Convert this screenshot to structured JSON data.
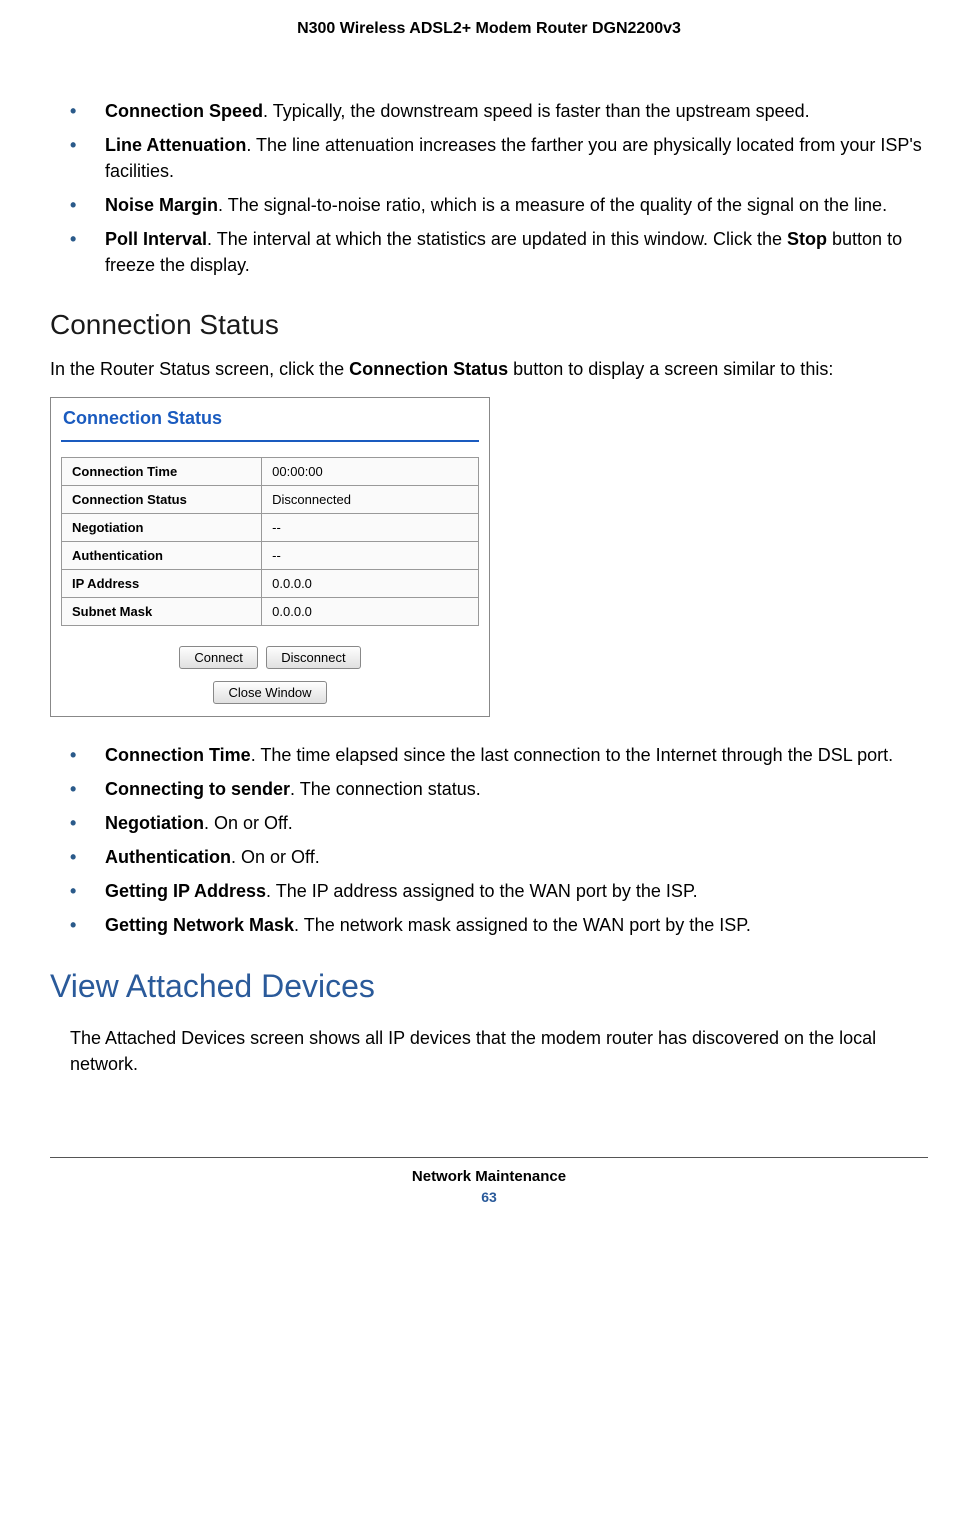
{
  "header": {
    "title": "N300 Wireless ADSL2+ Modem Router DGN2200v3"
  },
  "list1": [
    {
      "term": "Connection Speed",
      "desc": ". Typically, the downstream speed is faster than the upstream speed."
    },
    {
      "term": "Line Attenuation",
      "desc": ". The line attenuation increases the farther you are physically located from your ISP's facilities."
    },
    {
      "term": "Noise Margin",
      "desc": ". The signal-to-noise ratio, which is a measure of the quality of the signal on the line."
    },
    {
      "term": "Poll Interval",
      "desc_pre": ". The interval at which the statistics are updated in this window. Click the ",
      "bold2": "Stop",
      "desc_post": " button to freeze the display."
    }
  ],
  "section1": {
    "heading": "Connection Status",
    "intro_pre": "In the Router Status screen, click the ",
    "intro_bold": "Connection Status",
    "intro_post": " button to display a screen similar to this:"
  },
  "screenshot": {
    "title": "Connection Status",
    "rows": [
      {
        "label": "Connection Time",
        "value": "00:00:00"
      },
      {
        "label": "Connection Status",
        "value": "Disconnected"
      },
      {
        "label": "Negotiation",
        "value": "--"
      },
      {
        "label": "Authentication",
        "value": "--"
      },
      {
        "label": "IP Address",
        "value": "0.0.0.0"
      },
      {
        "label": "Subnet Mask",
        "value": "0.0.0.0"
      }
    ],
    "buttons": {
      "connect": "Connect",
      "disconnect": "Disconnect",
      "close": "Close Window"
    }
  },
  "list2": [
    {
      "term": "Connection Time",
      "desc": ". The time elapsed since the last connection to the Internet through the DSL port."
    },
    {
      "term": "Connecting to sender",
      "desc": ". The connection status."
    },
    {
      "term": "Negotiation",
      "desc": ". On or Off."
    },
    {
      "term": "Authentication",
      "desc": ". On or Off."
    },
    {
      "term": "Getting IP Address",
      "desc": ". The IP address assigned to the WAN port by the ISP."
    },
    {
      "term": "Getting Network Mask",
      "desc": ". The network mask assigned to the WAN port by the ISP."
    }
  ],
  "section2": {
    "heading": "View Attached Devices",
    "body": "The Attached Devices screen shows all IP devices that the modem router has discovered on the local network."
  },
  "footer": {
    "section": "Network Maintenance",
    "page": "63"
  }
}
